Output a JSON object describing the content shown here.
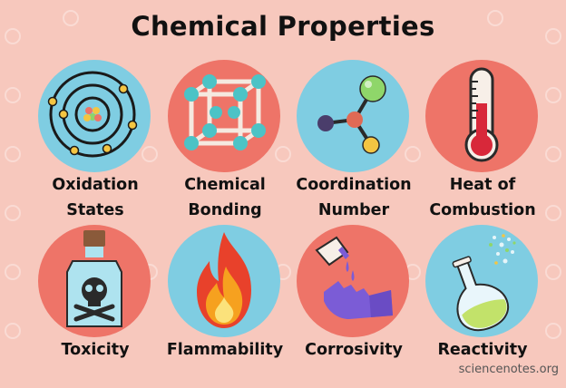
{
  "title": "Chemical Properties",
  "credit": "sciencenotes.org",
  "colors": {
    "background": "#f7c8bd",
    "circle_blue": "#7fcde2",
    "circle_red": "#ee7468",
    "text": "#111111"
  },
  "properties": [
    {
      "icon": "atom-icon",
      "line1": "Oxidation",
      "line2": "States"
    },
    {
      "icon": "lattice-icon",
      "line1": "Chemical",
      "line2": "Bonding"
    },
    {
      "icon": "molecule-icon",
      "line1": "Coordination",
      "line2": "Number"
    },
    {
      "icon": "thermometer-icon",
      "line1": "Heat of",
      "line2": "Combustion"
    },
    {
      "icon": "poison-bottle-icon",
      "line1": "Toxicity"
    },
    {
      "icon": "flame-icon",
      "line1": "Flammability"
    },
    {
      "icon": "corrosion-hand-icon",
      "line1": "Corrosivity"
    },
    {
      "icon": "flask-icon",
      "line1": "Reactivity"
    }
  ]
}
